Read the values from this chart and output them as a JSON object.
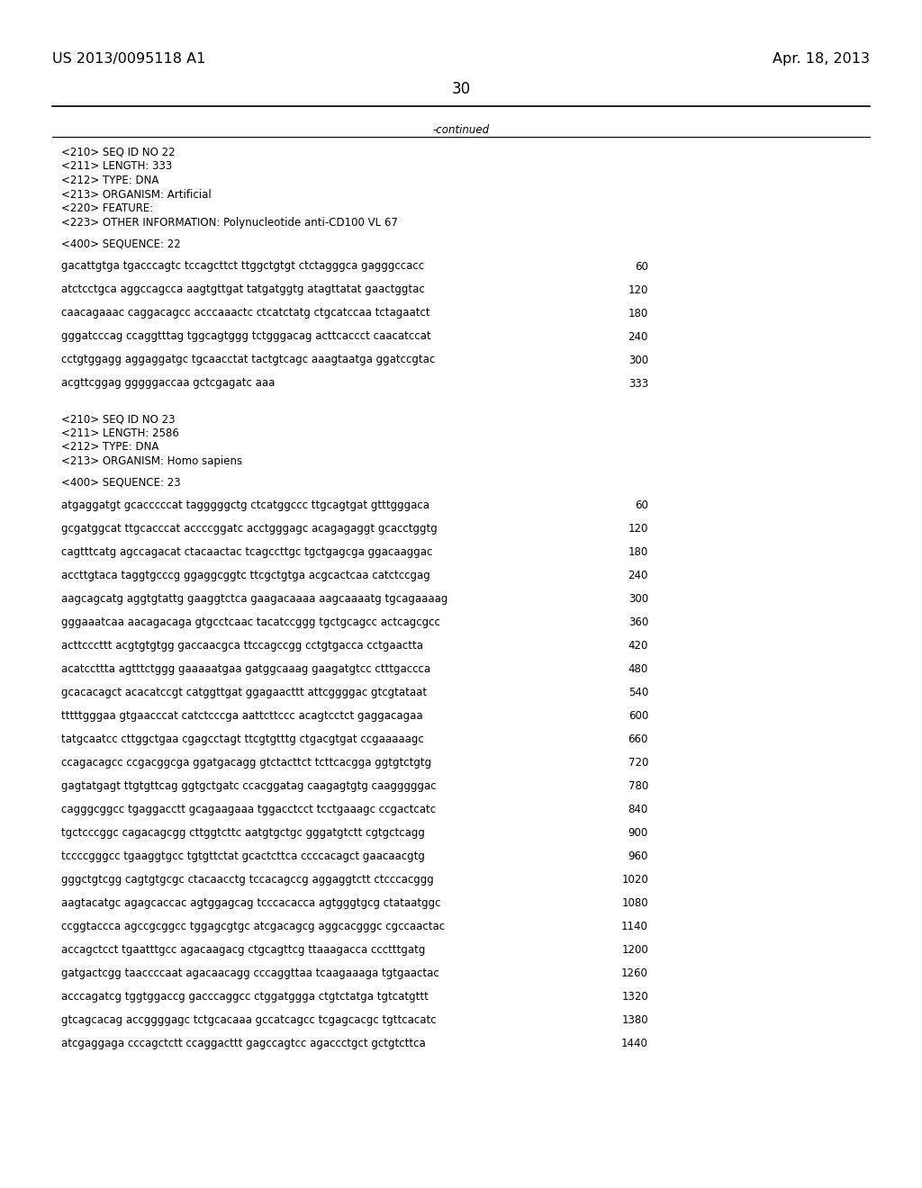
{
  "header_left": "US 2013/0095118 A1",
  "header_right": "Apr. 18, 2013",
  "page_number": "30",
  "continued_text": "-continued",
  "background_color": "#ffffff",
  "text_color": "#000000",
  "seq22_metadata": [
    "<210> SEQ ID NO 22",
    "<211> LENGTH: 333",
    "<212> TYPE: DNA",
    "<213> ORGANISM: Artificial",
    "<220> FEATURE:",
    "<223> OTHER INFORMATION: Polynucleotide anti-CD100 VL 67"
  ],
  "seq22_label": "<400> SEQUENCE: 22",
  "seq22_lines": [
    [
      "gacattgtga tgacccagtc tccagcttct ttggctgtgt ctctagggca gagggccacc",
      "60"
    ],
    [
      "atctcctgca aggccagcca aagtgttgat tatgatggtg atagttatat gaactggtac",
      "120"
    ],
    [
      "caacagaaac caggacagcc acccaaactc ctcatctatg ctgcatccaa tctagaatct",
      "180"
    ],
    [
      "gggatcccag ccaggtttag tggcagtggg tctgggacag acttcaccct caacatccat",
      "240"
    ],
    [
      "cctgtggagg aggaggatgc tgcaacctat tactgtcagc aaagtaatga ggatccgtac",
      "300"
    ],
    [
      "acgttcggag gggggaccaa gctcgagatc aaa",
      "333"
    ]
  ],
  "seq23_metadata": [
    "<210> SEQ ID NO 23",
    "<211> LENGTH: 2586",
    "<212> TYPE: DNA",
    "<213> ORGANISM: Homo sapiens"
  ],
  "seq23_label": "<400> SEQUENCE: 23",
  "seq23_lines": [
    [
      "atgaggatgt gcacccccat tagggggctg ctcatggccc ttgcagtgat gtttgggaca",
      "60"
    ],
    [
      "gcgatggcat ttgcacccat accccggatc acctgggagc acagagaggt gcacctggtg",
      "120"
    ],
    [
      "cagtttcatg agccagacat ctacaactac tcagccttgc tgctgagcga ggacaaggac",
      "180"
    ],
    [
      "accttgtaca taggtgcccg ggaggcggtc ttcgctgtga acgcactcaa catctccgag",
      "240"
    ],
    [
      "aagcagcatg aggtgtattg gaaggtctca gaagacaaaa aagcaaaatg tgcagaaaag",
      "300"
    ],
    [
      "gggaaatcaa aacagacaga gtgcctcaac tacatccggg tgctgcagcc actcagcgcc",
      "360"
    ],
    [
      "acttcccttt acgtgtgtgg gaccaacgca ttccagccgg cctgtgacca cctgaactta",
      "420"
    ],
    [
      "acatccttta agtttctggg gaaaaatgaa gatggcaaag gaagatgtcc ctttgaccca",
      "480"
    ],
    [
      "gcacacagct acacatccgt catggttgat ggagaacttt attcggggac gtcgtataat",
      "540"
    ],
    [
      "tttttgggaa gtgaacccat catctcccga aattcttccc acagtcctct gaggacagaa",
      "600"
    ],
    [
      "tatgcaatcc cttggctgaa cgagcctagt ttcgtgtttg ctgacgtgat ccgaaaaagc",
      "660"
    ],
    [
      "ccagacagcc ccgacggcga ggatgacagg gtctacttct tcttcacgga ggtgtctgtg",
      "720"
    ],
    [
      "gagtatgagt ttgtgttcag ggtgctgatc ccacggatag caagagtgtg caagggggac",
      "780"
    ],
    [
      "cagggcggcc tgaggacctt gcagaagaaa tggacctcct tcctgaaagc ccgactcatc",
      "840"
    ],
    [
      "tgctcccggc cagacagcgg cttggtcttc aatgtgctgc gggatgtctt cgtgctcagg",
      "900"
    ],
    [
      "tccccgggcc tgaaggtgcc tgtgttctat gcactcttca ccccacagct gaacaacgtg",
      "960"
    ],
    [
      "gggctgtcgg cagtgtgcgc ctacaacctg tccacagccg aggaggtctt ctcccacggg",
      "1020"
    ],
    [
      "aagtacatgc agagcaccac agtggagcag tcccacacca agtgggtgcg ctataatggc",
      "1080"
    ],
    [
      "ccggtaccca agccgcggcc tggagcgtgc atcgacagcg aggcacgggc cgccaactac",
      "1140"
    ],
    [
      "accagctcct tgaatttgcc agacaagacg ctgcagttcg ttaaagacca ccctttgatg",
      "1200"
    ],
    [
      "gatgactcgg taaccccaat agacaacagg cccaggttaa tcaagaaaga tgtgaactac",
      "1260"
    ],
    [
      "acccagatcg tggtggaccg gacccaggcc ctggatggga ctgtctatga tgtcatgttt",
      "1320"
    ],
    [
      "gtcagcacag accggggagc tctgcacaaa gccatcagcc tcgagcacgc tgttcacatc",
      "1380"
    ],
    [
      "atcgaggaga cccagctctt ccaggacttt gagccagtcc agaccctgct gctgtcttca",
      "1440"
    ]
  ]
}
